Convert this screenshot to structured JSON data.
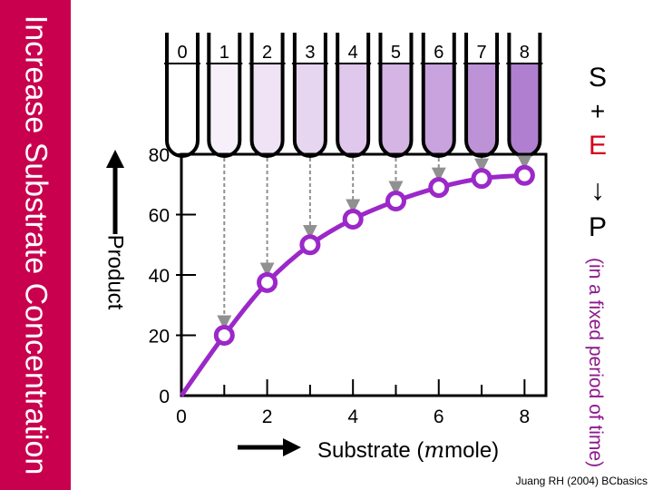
{
  "sidebar": {
    "title": "Increase Substrate Concentration",
    "color": "#c8004e"
  },
  "tubes": {
    "labels": [
      "0",
      "1",
      "2",
      "3",
      "4",
      "5",
      "6",
      "7",
      "8"
    ],
    "fill_colors": [
      "#ffffff",
      "#f7f0fa",
      "#efe3f5",
      "#e7d6f0",
      "#dfc8eb",
      "#d4b5e4",
      "#c9a3dd",
      "#bd92d6",
      "#b07fcf"
    ]
  },
  "reaction": {
    "s": "S",
    "plus": "+",
    "e": "E",
    "arrow": "↓",
    "p": "P",
    "note": "(in a fixed period of time)"
  },
  "y_axis_title": "Product",
  "x_axis_title": {
    "prefix": "Substrate (",
    "mu": "m",
    "suffix": "mole)"
  },
  "credit": "Juang RH (2004) BCbasics",
  "colors": {
    "curve": "#9b28c8",
    "arrow": "#909090"
  },
  "chart_data": {
    "type": "line",
    "x": [
      1,
      2,
      3,
      4,
      5,
      6,
      7,
      8
    ],
    "y": [
      20,
      37.5,
      50,
      58.5,
      64.5,
      69,
      72,
      73
    ],
    "curve_start": [
      0,
      0
    ],
    "xlim": [
      0,
      8.5
    ],
    "ylim": [
      0,
      80
    ],
    "x_ticks": [
      0,
      2,
      4,
      6,
      8
    ],
    "y_ticks": [
      0,
      20,
      40,
      60,
      80
    ]
  }
}
